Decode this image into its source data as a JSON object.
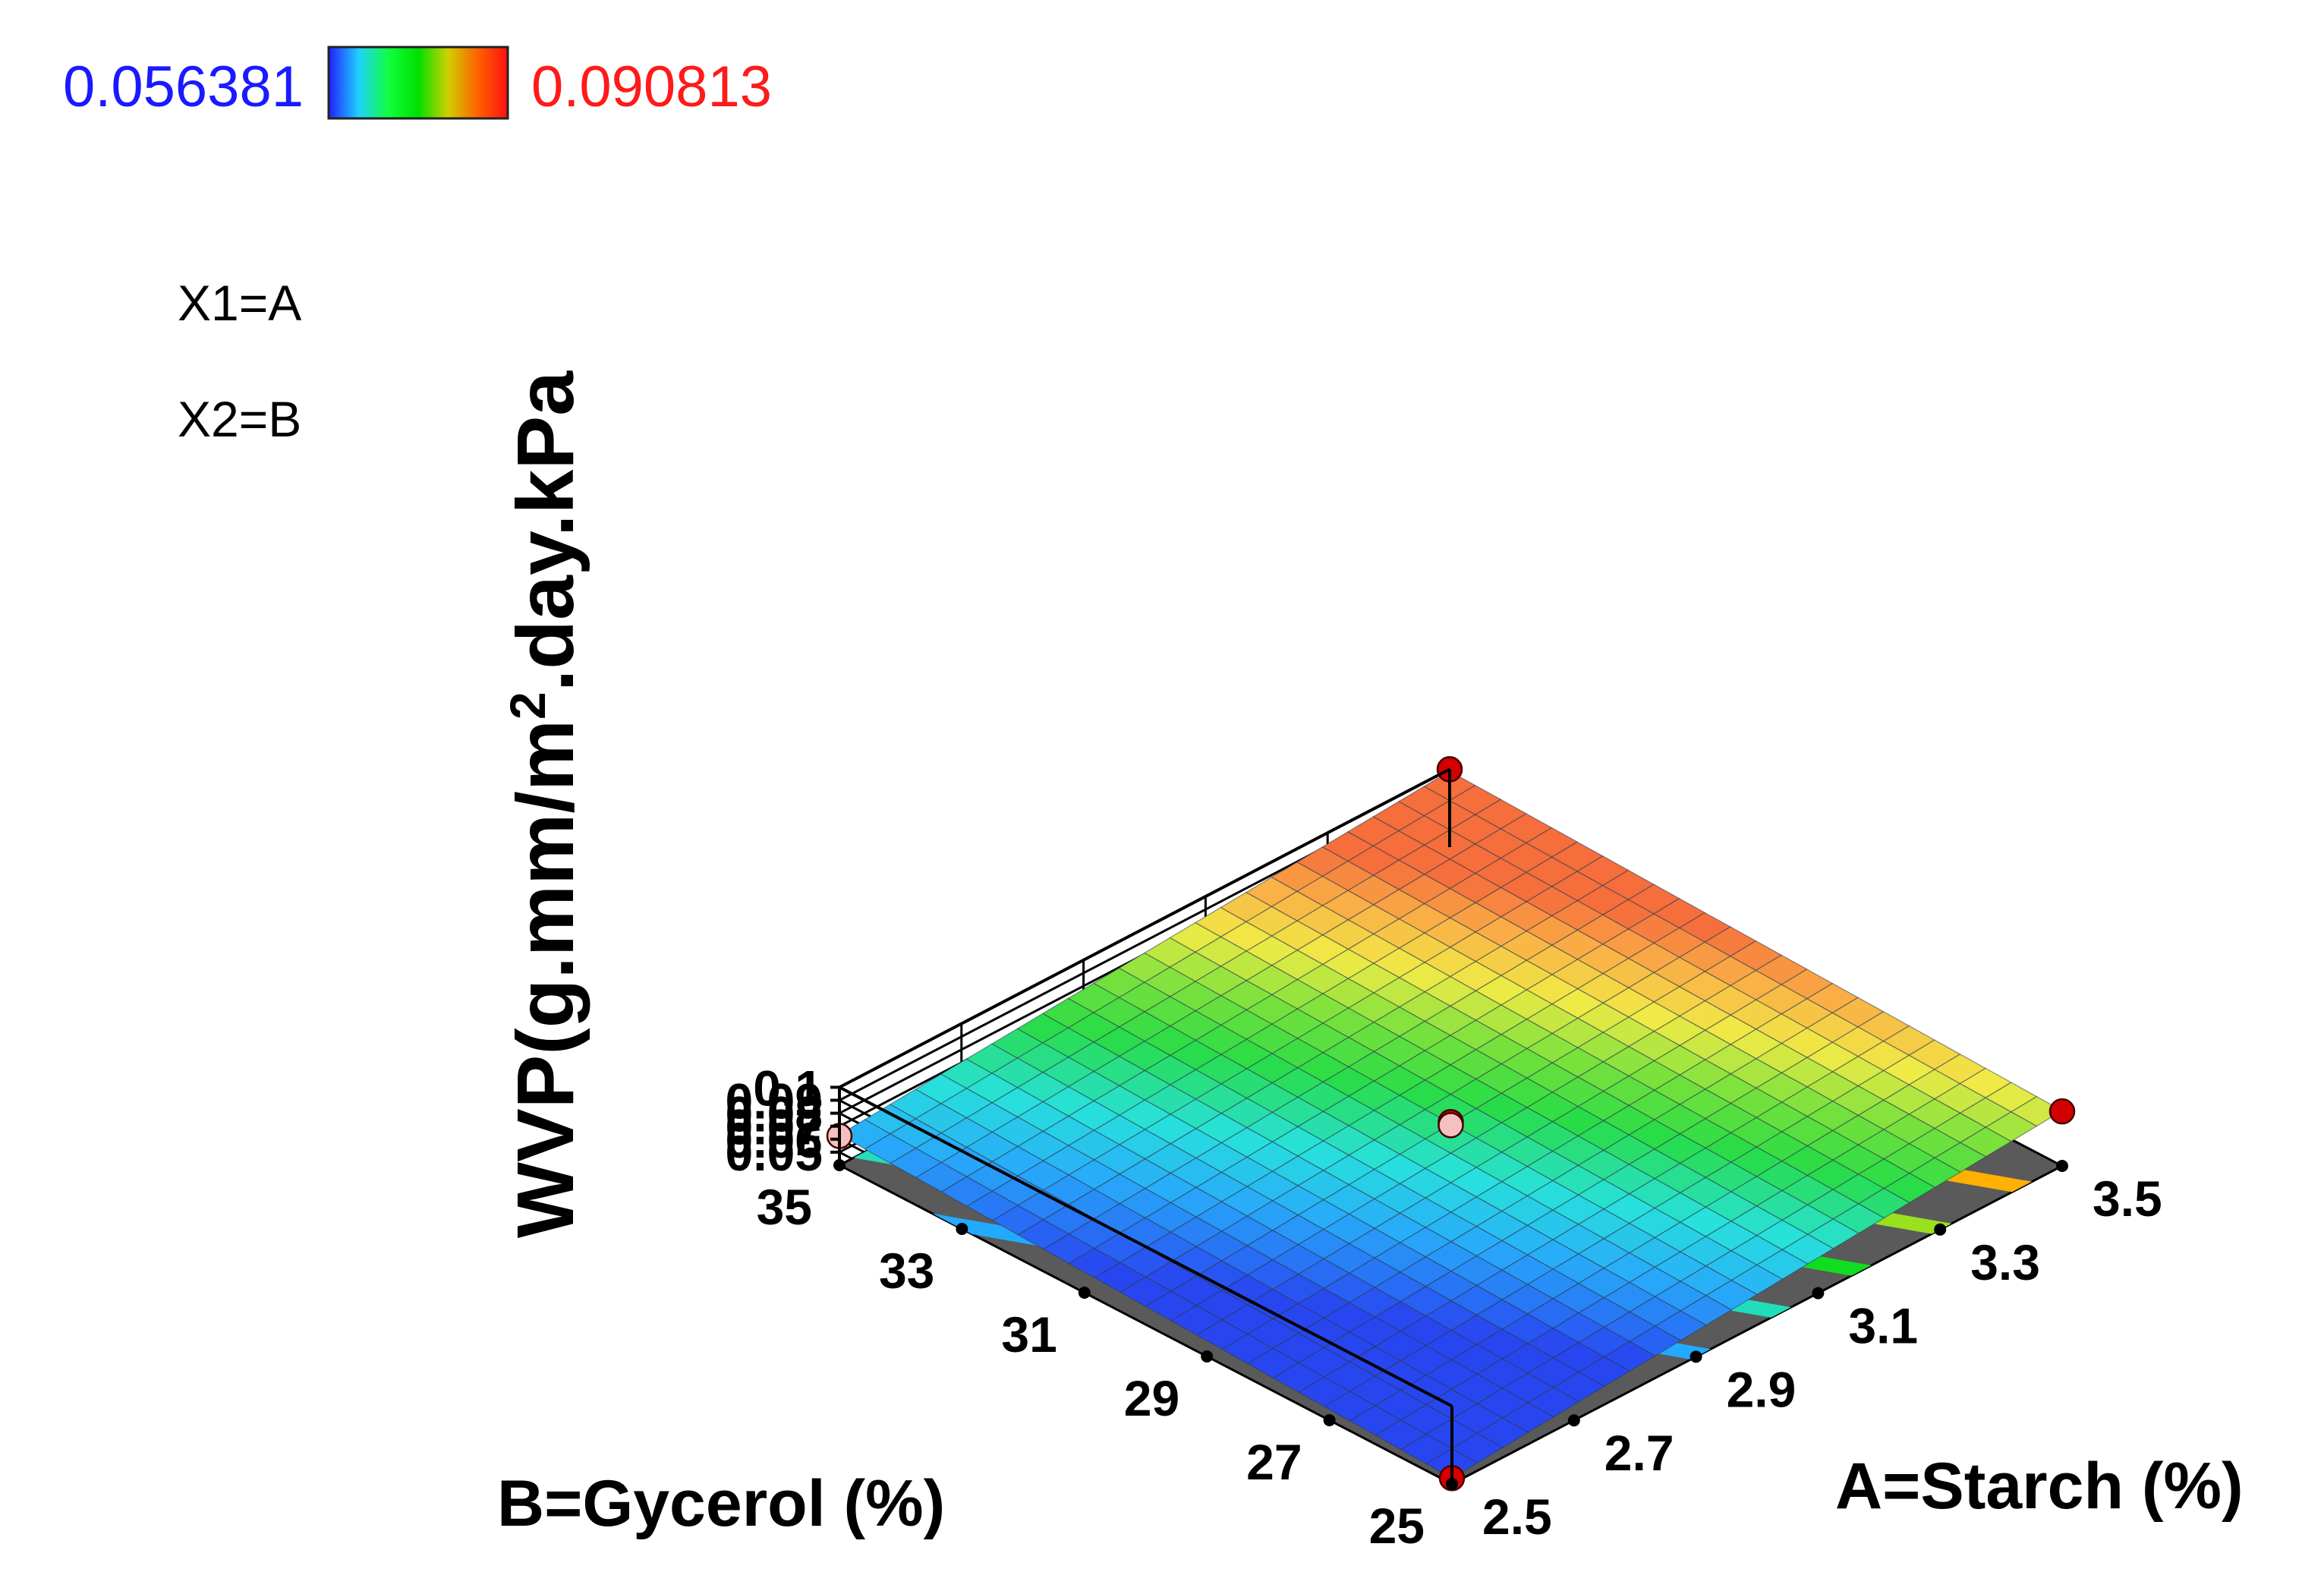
{
  "colorbar": {
    "min_label": "0.056381",
    "max_label": "0.090813",
    "min_color": "#1a1aff",
    "max_color": "#ff1a1a",
    "stops": [
      "#2020ff",
      "#20d0ff",
      "#10ff40",
      "#00e000",
      "#d0d000",
      "#ff6000",
      "#ff1010"
    ]
  },
  "legend": {
    "x1": "X1=A",
    "x2": "X2=B"
  },
  "axes": {
    "z_label_main": "WVP(g.mm/m",
    "z_label_sup": "2",
    "z_label_rest": ".day.kPa",
    "b_label": "B=Gycerol (%)",
    "a_label": "A=Starch (%)",
    "z_ticks": [
      "0.1",
      "0.09",
      "0.08",
      "0.07",
      "0.06",
      "0.05"
    ],
    "b_ticks": [
      "35",
      "33",
      "31",
      "29",
      "27",
      "25"
    ],
    "a_ticks": [
      "2.5",
      "2.7",
      "2.9",
      "3.1",
      "3.3",
      "3.5"
    ]
  },
  "chart_data": {
    "type": "surface",
    "title": "",
    "x": {
      "name": "A=Starch (%)",
      "range": [
        2.5,
        3.5
      ],
      "ticks": [
        2.5,
        2.7,
        2.9,
        3.1,
        3.3,
        3.5
      ]
    },
    "y": {
      "name": "B=Gycerol (%)",
      "range": [
        25,
        35
      ],
      "ticks": [
        25,
        27,
        29,
        31,
        33,
        35
      ]
    },
    "z": {
      "name": "WVP(g.mm/m2.day.kPa)",
      "range": [
        0.04,
        0.1
      ],
      "ticks": [
        0.05,
        0.06,
        0.07,
        0.08,
        0.09,
        0.1
      ]
    },
    "surface_corners": [
      {
        "A": 2.5,
        "B": 25,
        "z": 0.0445
      },
      {
        "A": 3.5,
        "B": 25,
        "z": 0.0825
      },
      {
        "A": 2.5,
        "B": 35,
        "z": 0.0635
      },
      {
        "A": 3.5,
        "B": 35,
        "z": 0.0985
      }
    ],
    "design_points": [
      {
        "A": 3.5,
        "B": 35,
        "z": 0.1
      },
      {
        "A": 3.5,
        "B": 25,
        "z": 0.082
      },
      {
        "A": 2.5,
        "B": 35,
        "z": 0.0625
      },
      {
        "A": 2.5,
        "B": 25,
        "z": 0.0445
      },
      {
        "A": 3.0,
        "B": 30,
        "z": 0.0735
      },
      {
        "A": 3.0,
        "B": 30,
        "z": 0.0711
      }
    ],
    "colorbar_range": [
      0.056381,
      0.090813
    ],
    "contours": [
      {
        "z": 0.06,
        "color": "#22aaff"
      },
      {
        "z": 0.065,
        "color": "#22ddbb"
      },
      {
        "z": 0.07,
        "color": "#10dd20"
      },
      {
        "z": 0.075,
        "color": "#99e020"
      },
      {
        "z": 0.08,
        "color": "#ffb000"
      }
    ],
    "grid": true
  }
}
